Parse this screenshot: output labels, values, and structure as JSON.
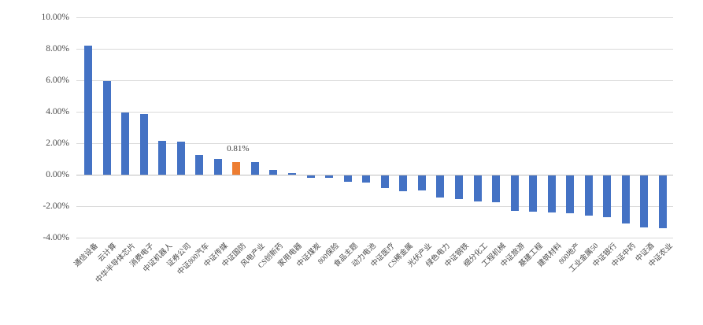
{
  "chart_data": {
    "type": "bar",
    "categories": [
      "通信设备",
      "云计算",
      "中华半导体芯片",
      "消费电子",
      "中证机器人",
      "证券公司",
      "中证800汽车",
      "中证传媒",
      "中证国防",
      "风电产业",
      "CS创新药",
      "家用电器",
      "中证煤炭",
      "800保险",
      "食品主题",
      "动力电池",
      "中证医疗",
      "CS稀金属",
      "光伏产业",
      "绿色电力",
      "中证钢铁",
      "细分化工",
      "工程机械",
      "中证旅游",
      "基建工程",
      "建筑材料",
      "800地产",
      "工业金属50",
      "中证银行",
      "中证中药",
      "中证酒",
      "中证农业"
    ],
    "values": [
      8.2,
      5.93,
      3.97,
      3.85,
      2.17,
      2.1,
      1.25,
      1.0,
      0.81,
      0.78,
      0.3,
      0.12,
      -0.13,
      -0.16,
      -0.38,
      -0.47,
      -0.8,
      -0.98,
      -0.94,
      -1.41,
      -1.49,
      -1.65,
      -1.68,
      -2.24,
      -2.28,
      -2.33,
      -2.41,
      -2.53,
      -2.67,
      -3.04,
      -3.28,
      -3.34
    ],
    "highlight_index": 8,
    "data_label": {
      "index": 8,
      "text": "0.81%"
    },
    "y_ticks": [
      {
        "value": 10,
        "label": "10.00%"
      },
      {
        "value": 8,
        "label": "8.00%"
      },
      {
        "value": 6,
        "label": "6.00%"
      },
      {
        "value": 4,
        "label": "4.00%"
      },
      {
        "value": 2,
        "label": "2.00%"
      },
      {
        "value": 0,
        "label": "0.00%"
      },
      {
        "value": -2,
        "label": "-2.00%"
      },
      {
        "value": -4,
        "label": "-4.00%"
      }
    ],
    "ylim": [
      -4,
      10
    ],
    "grid": true,
    "legend": false,
    "xlabel": "",
    "ylabel": "",
    "colors": {
      "bar": "#4472c4",
      "highlight": "#ed7d31",
      "gridline": "#d9d9d9",
      "axis_line": "#bfbfbf",
      "text": "#4a4a4a",
      "background": "#ffffff"
    }
  }
}
